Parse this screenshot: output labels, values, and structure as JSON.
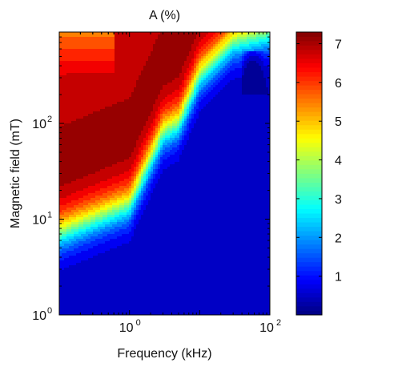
{
  "chart_data": {
    "type": "heatmap",
    "title": "A (%)",
    "xlabel": "Frequency (kHz)",
    "ylabel": "Magnetic field (mT)",
    "x_scale": "log",
    "y_scale": "log",
    "xlim": [
      0.1,
      100
    ],
    "ylim": [
      1,
      900
    ],
    "x_ticks": [
      {
        "value": 1,
        "base": "10",
        "exp": "0"
      },
      {
        "value": 100,
        "base": "10",
        "exp": "2"
      }
    ],
    "y_ticks": [
      {
        "value": 1,
        "base": "10",
        "exp": "0"
      },
      {
        "value": 10,
        "base": "10",
        "exp": "1"
      },
      {
        "value": 100,
        "base": "10",
        "exp": "2"
      }
    ],
    "colorbar": {
      "colormap": "jet",
      "range": [
        0,
        7.3
      ],
      "ticks": [
        {
          "value": 1,
          "label": "1"
        },
        {
          "value": 2,
          "label": "2"
        },
        {
          "value": 3,
          "label": "3"
        },
        {
          "value": 4,
          "label": "4"
        },
        {
          "value": 5,
          "label": "5"
        },
        {
          "value": 6,
          "label": "6"
        },
        {
          "value": 7,
          "label": "7"
        }
      ]
    },
    "contour_levels": 22,
    "ridge_log_field": [
      [
        0.1,
        0.85
      ],
      [
        1,
        1.15
      ],
      [
        3,
        1.9
      ],
      [
        5,
        2.0
      ],
      [
        10,
        2.5
      ],
      [
        30,
        2.85
      ],
      [
        100,
        2.95
      ]
    ]
  }
}
